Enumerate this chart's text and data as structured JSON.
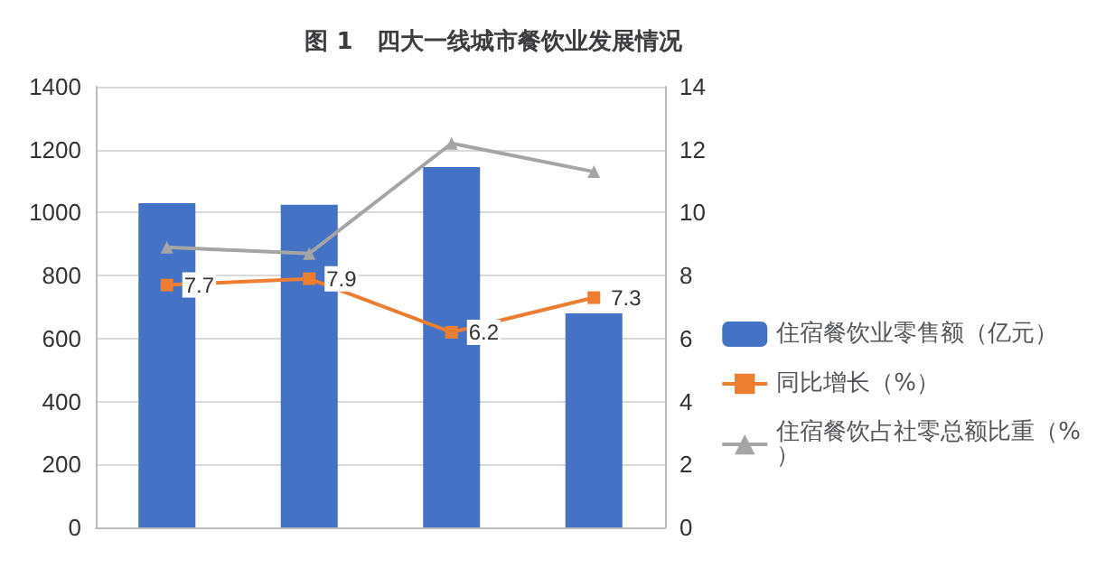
{
  "chart_data": {
    "type": "bar",
    "title": "图 1　四大一线城市餐饮业发展情况",
    "categories": [
      null,
      null,
      null,
      null
    ],
    "series": [
      {
        "name": "住宿餐饮业零售额（亿元）",
        "color": "#4472c4",
        "values": [
          1030,
          1025,
          1145,
          680
        ]
      },
      {
        "name": "同比增长（%）",
        "type": "line",
        "axis": "y2",
        "color": "#ed7d31",
        "marker": "square",
        "values": [
          7.7,
          7.9,
          6.2,
          7.3
        ],
        "data_labels": true
      },
      {
        "name": "住宿餐饮占社零总额比重（%）",
        "type": "line",
        "axis": "y2",
        "color": "#a5a5a5",
        "marker": "triangle",
        "values": [
          8.9,
          8.7,
          12.2,
          11.3
        ]
      }
    ],
    "ylim": [
      0,
      1400
    ],
    "yticks": [
      0,
      200,
      400,
      600,
      800,
      1000,
      1200,
      1400
    ],
    "y2lim": [
      0,
      14
    ],
    "y2ticks": [
      0,
      2,
      4,
      6,
      8,
      10,
      12,
      14
    ],
    "grid": "y",
    "legend": "right"
  }
}
